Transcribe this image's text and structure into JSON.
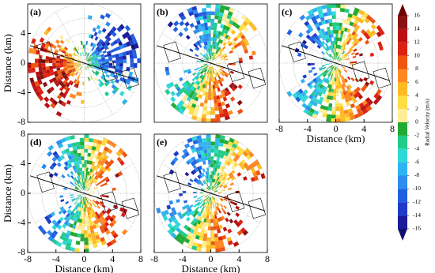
{
  "chart_data": [
    {
      "type": "ppi",
      "panel_label": "(a)",
      "ylabel": "Distance (km)",
      "xlim": [
        -8,
        8
      ],
      "ylim": [
        -8,
        8
      ],
      "yticks": [
        -8,
        -4,
        0,
        4
      ],
      "phase": 0.4
    },
    {
      "type": "ppi",
      "panel_label": "(b)",
      "xlim": [
        -8,
        8
      ],
      "ylim": [
        -8,
        8
      ],
      "phase": 2.6
    },
    {
      "type": "ppi",
      "panel_label": "(c)",
      "xlabel": "Distance (km)",
      "xlim": [
        -8,
        8
      ],
      "ylim": [
        -8,
        8
      ],
      "xticks": [
        -8,
        -4,
        0,
        4,
        8
      ],
      "phase": 2.9
    },
    {
      "type": "ppi",
      "panel_label": "(d)",
      "xlabel": "Distance (km)",
      "ylabel": "Distance (km)",
      "xlim": [
        -8,
        8
      ],
      "ylim": [
        -8,
        8
      ],
      "xticks": [
        -8,
        -4,
        0,
        4,
        8
      ],
      "yticks": [
        -8,
        -4,
        0,
        4,
        8
      ],
      "phase": 3.0
    },
    {
      "type": "ppi",
      "panel_label": "(e)",
      "xlabel": "Distance (km)",
      "xlim": [
        -8,
        8
      ],
      "ylim": [
        -8,
        8
      ],
      "xticks": [
        -8,
        -4,
        0,
        4,
        8
      ],
      "phase": 2.7
    }
  ],
  "colorbar": {
    "label": "Radial Velocity (m/s)",
    "lim": [
      -16,
      16
    ],
    "ticks": [
      -16,
      -14,
      -12,
      -10,
      -8,
      -6,
      -4,
      -2,
      0,
      2,
      4,
      6,
      8,
      10,
      12,
      14,
      16
    ],
    "colors": [
      "#1a1a9c",
      "#1e3cc8",
      "#2060e0",
      "#2e8cf0",
      "#30b4f0",
      "#2fd8d8",
      "#22cc88",
      "#22aa33",
      "#ffee99",
      "#ffdd44",
      "#ffbb22",
      "#ff8822",
      "#ee5511",
      "#dd2211",
      "#bb1111",
      "#881111"
    ],
    "extend_colors": [
      "#11116e",
      "#6e0000"
    ]
  }
}
